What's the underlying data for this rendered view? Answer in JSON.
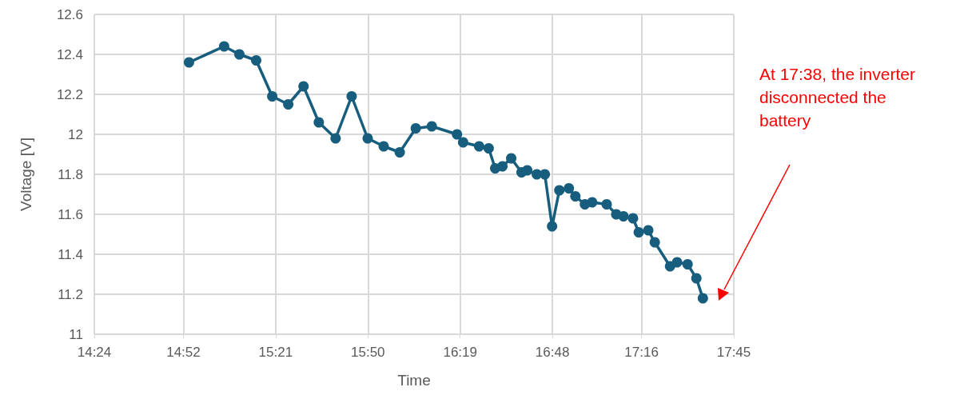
{
  "chart_data": {
    "type": "line",
    "xlabel": "Time",
    "ylabel": "Voltage [V]",
    "annotations": [
      "At 17:38, the inverter disconnected the battery"
    ],
    "series": [
      {
        "color": "#175e7e",
        "x": [
          14.896,
          15.08,
          15.16,
          15.248,
          15.332,
          15.416,
          15.496,
          15.576,
          15.664,
          15.748,
          15.832,
          15.916,
          16.0,
          16.084,
          16.168,
          16.3,
          16.332,
          16.416,
          16.466,
          16.5,
          16.538,
          16.584,
          16.638,
          16.668,
          16.718,
          16.76,
          16.798,
          16.836,
          16.886,
          16.92,
          16.97,
          17.008,
          17.084,
          17.134,
          17.172,
          17.222,
          17.252,
          17.302,
          17.336,
          17.416,
          17.453,
          17.508,
          17.554,
          17.588
        ],
        "values": [
          12.36,
          12.44,
          12.4,
          12.37,
          12.19,
          12.15,
          12.24,
          12.06,
          11.98,
          12.19,
          11.98,
          11.94,
          11.91,
          12.03,
          12.04,
          12.0,
          11.96,
          11.94,
          11.93,
          11.83,
          11.84,
          11.88,
          11.81,
          11.82,
          11.8,
          11.8,
          11.54,
          11.72,
          11.73,
          11.69,
          11.65,
          11.66,
          11.65,
          11.6,
          11.59,
          11.58,
          11.51,
          11.52,
          11.46,
          11.34,
          11.36,
          11.35,
          11.28,
          11.18
        ]
      }
    ],
    "xlim": [
      14.4,
      17.75
    ],
    "xticks": [
      {
        "value": 14.4,
        "label": "14:24"
      },
      {
        "value": 14.8667,
        "label": "14:52"
      },
      {
        "value": 15.35,
        "label": "15:21"
      },
      {
        "value": 15.8333,
        "label": "15:50"
      },
      {
        "value": 16.3167,
        "label": "16:19"
      },
      {
        "value": 16.8,
        "label": "16:48"
      },
      {
        "value": 17.2667,
        "label": "17:16"
      },
      {
        "value": 17.75,
        "label": "17:45"
      }
    ],
    "ylim": [
      11,
      12.6
    ],
    "yticks": [
      11,
      11.2,
      11.4,
      11.6,
      11.8,
      12,
      12.2,
      12.4,
      12.6
    ],
    "grid": true,
    "marker": "circle",
    "line_style": "solid"
  }
}
